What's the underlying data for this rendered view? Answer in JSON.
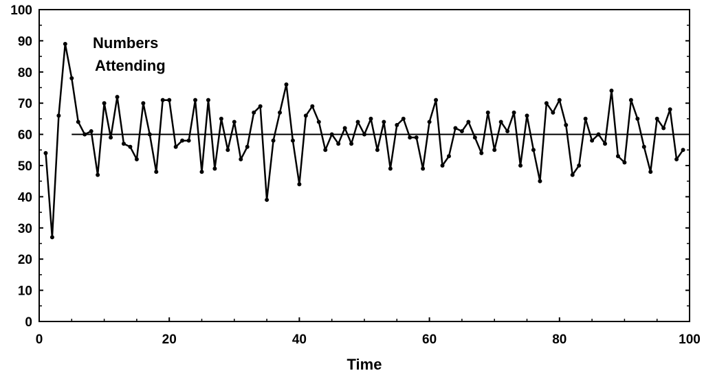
{
  "chart_data": {
    "type": "line",
    "title": "",
    "xlabel": "Time",
    "ylabel": "",
    "xlim": [
      0,
      100
    ],
    "ylim": [
      0,
      100
    ],
    "x_ticks": [
      0,
      20,
      40,
      60,
      80,
      100
    ],
    "y_ticks": [
      0,
      10,
      20,
      30,
      40,
      50,
      60,
      70,
      80,
      90,
      100
    ],
    "grid": false,
    "annotation_lines": [
      "Numbers",
      "Attending"
    ],
    "reference_line": 60,
    "series": [
      {
        "x": [
          1,
          2,
          3,
          4,
          5,
          6,
          7,
          8,
          9,
          10,
          11,
          12,
          13,
          14,
          15,
          16,
          17,
          18,
          19,
          20,
          21,
          22,
          23,
          24,
          25,
          26,
          27,
          28,
          29,
          30,
          31,
          32,
          33,
          34,
          35,
          36,
          37,
          38,
          39,
          40,
          41,
          42,
          43,
          44,
          45,
          46,
          47,
          48,
          49,
          50,
          51,
          52,
          53,
          54,
          55,
          56,
          57,
          58,
          59,
          60,
          61,
          62,
          63,
          64,
          65,
          66,
          67,
          68,
          69,
          70,
          71,
          72,
          73,
          74,
          75,
          76,
          77,
          78,
          79,
          80,
          81,
          82,
          83,
          84,
          85,
          86,
          87,
          88,
          89,
          90,
          91,
          92,
          93,
          94,
          95,
          96,
          97,
          98,
          99
        ],
        "y": [
          54,
          27,
          66,
          89,
          78,
          64,
          60,
          61,
          47,
          70,
          59,
          72,
          57,
          56,
          52,
          70,
          60,
          48,
          71,
          71,
          56,
          58,
          58,
          71,
          48,
          71,
          49,
          65,
          55,
          64,
          52,
          56,
          67,
          69,
          39,
          58,
          67,
          76,
          58,
          44,
          66,
          69,
          64,
          55,
          60,
          57,
          62,
          57,
          64,
          60,
          65,
          55,
          64,
          49,
          63,
          65,
          59,
          59,
          49,
          64,
          71,
          50,
          53,
          62,
          61,
          64,
          59,
          54,
          67,
          55,
          64,
          61,
          67,
          50,
          66,
          55,
          45,
          70,
          67,
          71,
          63,
          47,
          50,
          65,
          58,
          60,
          57,
          74,
          53,
          51,
          71,
          65,
          56,
          48,
          65,
          62,
          68,
          52,
          55
        ]
      }
    ],
    "colors": {
      "line": "#000000",
      "axes": "#000000",
      "background": "#ffffff"
    }
  }
}
